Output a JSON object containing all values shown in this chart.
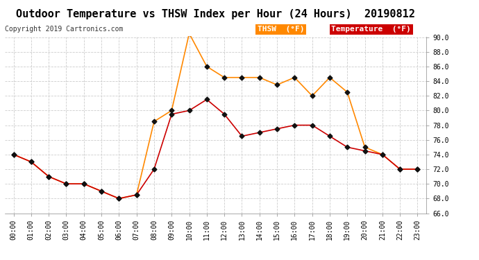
{
  "title": "Outdoor Temperature vs THSW Index per Hour (24 Hours)  20190812",
  "copyright": "Copyright 2019 Cartronics.com",
  "hours": [
    "00:00",
    "01:00",
    "02:00",
    "03:00",
    "04:00",
    "05:00",
    "06:00",
    "07:00",
    "08:00",
    "09:00",
    "10:00",
    "11:00",
    "12:00",
    "13:00",
    "14:00",
    "15:00",
    "16:00",
    "17:00",
    "18:00",
    "19:00",
    "20:00",
    "21:00",
    "22:00",
    "23:00"
  ],
  "temperature": [
    74.0,
    73.0,
    71.0,
    70.0,
    70.0,
    69.0,
    68.0,
    68.5,
    72.0,
    79.5,
    80.0,
    81.5,
    79.5,
    76.5,
    77.0,
    77.5,
    78.0,
    78.0,
    76.5,
    75.0,
    74.5,
    74.0,
    72.0,
    72.0
  ],
  "thsw": [
    74.0,
    73.0,
    71.0,
    70.0,
    70.0,
    69.0,
    68.0,
    68.5,
    78.5,
    80.0,
    90.5,
    86.0,
    84.5,
    84.5,
    84.5,
    83.5,
    84.5,
    82.0,
    84.5,
    82.5,
    75.0,
    74.0,
    72.0,
    72.0
  ],
  "temp_color": "#cc0000",
  "thsw_color": "#ff8800",
  "ylim_min": 66.0,
  "ylim_max": 90.0,
  "yticks": [
    66.0,
    68.0,
    70.0,
    72.0,
    74.0,
    76.0,
    78.0,
    80.0,
    82.0,
    84.0,
    86.0,
    88.0,
    90.0
  ],
  "background_color": "#ffffff",
  "grid_color": "#cccccc",
  "legend_thsw_bg": "#ff8800",
  "legend_temp_bg": "#cc0000",
  "legend_thsw_text": "THSW  (°F)",
  "legend_temp_text": "Temperature  (°F)",
  "title_fontsize": 11,
  "copyright_fontsize": 7,
  "tick_fontsize": 7,
  "marker": "D",
  "marker_size": 3.5,
  "marker_color": "#111111"
}
